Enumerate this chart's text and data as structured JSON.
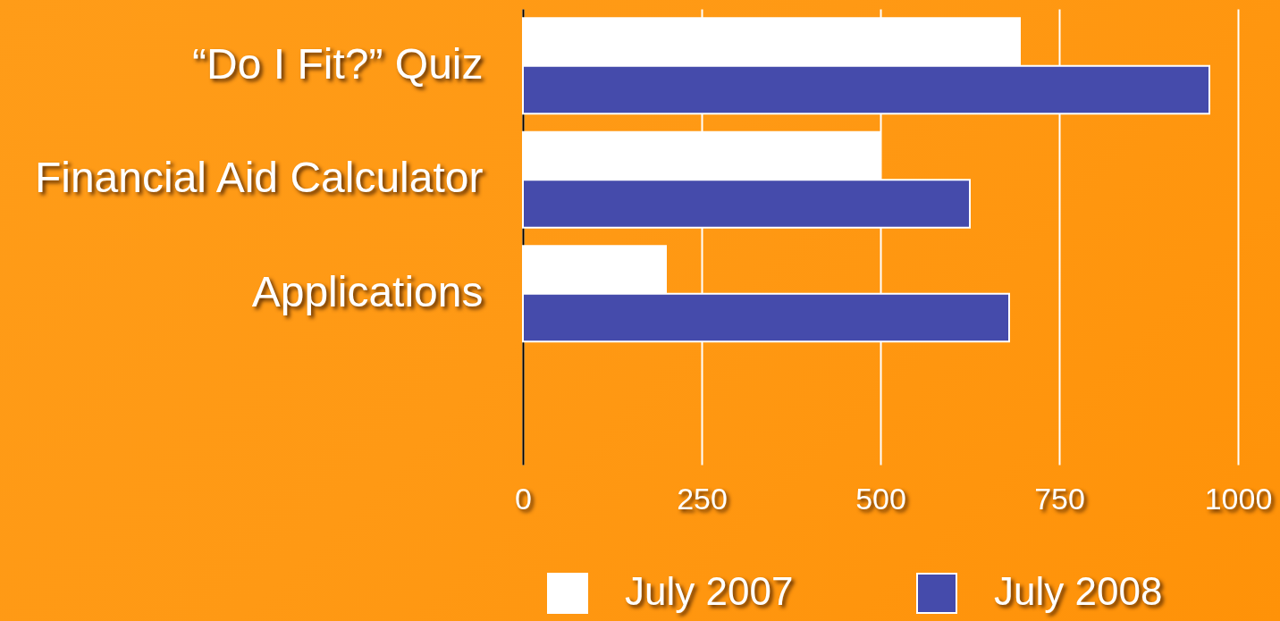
{
  "chart_data": {
    "type": "bar",
    "orientation": "horizontal",
    "categories": [
      "“Do I Fit?” Quiz",
      "Financial Aid Calculator",
      "Applications"
    ],
    "series": [
      {
        "name": "July 2007",
        "color": "#ffffff",
        "values": [
          695,
          500,
          200
        ]
      },
      {
        "name": "July 2008",
        "color": "#454bab",
        "values": [
          960,
          625,
          680
        ]
      }
    ],
    "xlim": [
      0,
      1000
    ],
    "xticks": [
      0,
      250,
      500,
      750,
      1000
    ],
    "grid": "x",
    "legend": "bottom"
  }
}
